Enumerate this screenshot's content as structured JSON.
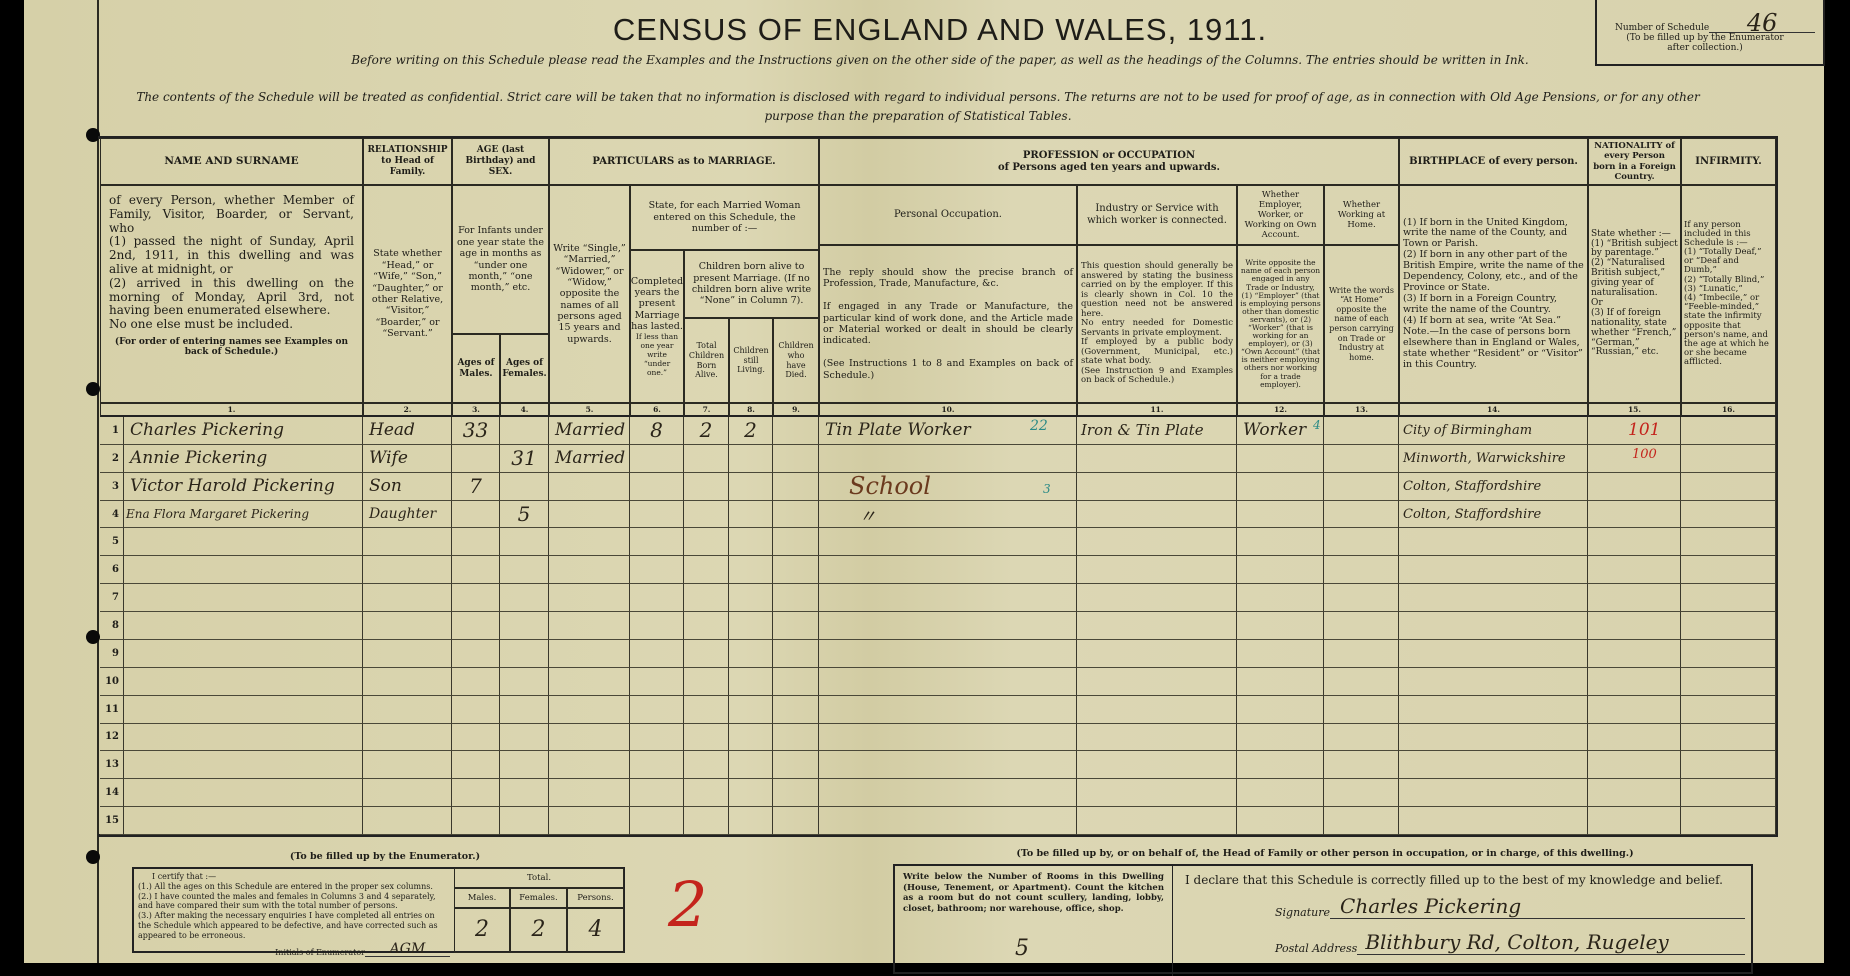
{
  "title": "CENSUS OF ENGLAND AND WALES, 1911.",
  "instruction_1": "Before writing on this Schedule please read the Examples and the Instructions given on the other side of the paper, as well as the headings of the Columns. The entries should be written in Ink.",
  "instruction_2": "The contents of the Schedule will be treated as confidential. Strict care will be taken that no information is disclosed with regard to individual persons. The returns are not to be used for proof of age, as in connection with Old Age Pensions, or for any other purpose than the preparation of Statistical Tables.",
  "schedule_box": {
    "label": "Number of Schedule",
    "value": "46",
    "note": "(To be filled up by the Enumerator after collection.)"
  },
  "headers": {
    "name": "NAME AND SURNAME",
    "name_desc": "of every Person, whether Member of Family, Visitor, Boarder, or Servant, who\n(1) passed the night of Sunday, April 2nd, 1911, in this dwelling and was alive at midnight, or\n(2) arrived in this dwelling on the morning of Monday, April 3rd, not having been enumerated elsewhere.\nNo one else must be included.",
    "name_note": "(For order of entering names see Examples on back of Schedule.)",
    "relationship": "RELATIONSHIP to Head of Family.",
    "relationship_desc": "State whether “Head,” or “Wife,” “Son,” “Daughter,” or other Relative, “Visitor,” “Boarder,” or “Servant.”",
    "age": "AGE (last Birthday) and SEX.",
    "age_desc": "For Infants under one year state the age in months as “under one month,” “one month,” etc.",
    "age_males": "Ages of Males.",
    "age_females": "Ages of Females.",
    "marriage": "PARTICULARS as to MARRIAGE.",
    "condition_desc": "Write “Single,” “Married,” “Widower,” or “Widow,” opposite the names of all persons aged 15 years and upwards.",
    "married_woman": "State, for each Married Woman entered on this Schedule, the number of :—",
    "years_married": "Completed years the present Marriage has lasted.",
    "years_married_note": "If less than one year write “under one.”",
    "children_born": "Children born alive to present Marriage. (If no children born alive write “None” in Column 7).",
    "total_born": "Total Children Born Alive.",
    "still_living": "Children still Living.",
    "died": "Children who have Died.",
    "profession": "PROFESSION or OCCUPATION",
    "profession_sub": "of Persons aged ten years and upwards.",
    "personal_occupation": "Personal Occupation.",
    "personal_occupation_desc": "The reply should show the precise branch of Profession, Trade, Manufacture, &c.\n\nIf engaged in any Trade or Manufacture, the particular kind of work done, and the Article made or Material worked or dealt in should be clearly indicated.\n\n(See Instructions 1 to 8 and Examples on back of Schedule.)",
    "industry": "Industry or Service with which worker is connected.",
    "industry_desc": "This question should generally be answered by stating the business carried on by the employer. If this is clearly shown in Col. 10 the question need not be answered here.\nNo entry needed for Domestic Servants in private employment.\nIf employed by a public body (Government, Municipal, etc.) state what body.\n(See Instruction 9 and Examples on back of Schedule.)",
    "employer": "Whether Employer, Worker, or Working on Own Account.",
    "employer_desc": "Write opposite the name of each person engaged in any Trade or Industry, (1) “Employer” (that is employing persons other than domestic servants), or (2) “Worker” (that is working for an employer), or (3) “Own Account” (that is neither employing others nor working for a trade employer).",
    "at_home": "Whether Working at Home.",
    "at_home_desc": "Write the words “At Home” opposite the name of each person carrying on Trade or Industry at home.",
    "birthplace": "BIRTHPLACE of every person.",
    "birthplace_desc": "(1) If born in the United Kingdom, write the name of the County, and Town or Parish.\n(2) If born in any other part of the British Empire, write the name of the Dependency, Colony, etc., and of the Province or State.\n(3) If born in a Foreign Country, write the name of the Country.\n(4) If born at sea, write “At Sea.”\nNote.—In the case of persons born elsewhere than in England or Wales, state whether “Resident” or “Visitor” in this Country.",
    "nationality": "NATIONALITY of every Person born in a Foreign Country.",
    "nationality_desc": "State whether :—\n(1) “British subject by parentage.”\n(2) “Naturalised British subject,” giving year of naturalisation.\nOr\n(3) If of foreign nationality, state whether “French,” “German,” “Russian,” etc.",
    "infirmity": "INFIRMITY.",
    "infirmity_desc": "If any person included in this Schedule is :—\n(1) “Totally Deaf,” or “Deaf and Dumb,”\n(2) “Totally Blind,”\n(3) “Lunatic,”\n(4) “Imbecile,” or “Feeble-minded,”\nstate the infirmity opposite that person's name, and the age at which he or she became afflicted.",
    "col_numbers": [
      "1.",
      "2.",
      "3.",
      "4.",
      "5.",
      "6.",
      "7.",
      "8.",
      "9.",
      "10.",
      "11.",
      "12.",
      "13.",
      "14.",
      "15.",
      "16."
    ]
  },
  "rows": [
    {
      "no": "1",
      "name": "Charles Pickering",
      "relationship": "Head",
      "age_male": "33",
      "age_female": "",
      "condition": "Married",
      "years_married": "8",
      "born_alive": "2",
      "living": "2",
      "died": "",
      "occupation": "Tin Plate Worker",
      "industry": "Iron & Tin Plate",
      "employment": "Worker",
      "at_home": "",
      "birthplace": "City of Birmingham",
      "nationality": "",
      "infirmity": ""
    },
    {
      "no": "2",
      "name": "Annie Pickering",
      "relationship": "Wife",
      "age_male": "",
      "age_female": "31",
      "condition": "Married",
      "years_married": "",
      "born_alive": "",
      "living": "",
      "died": "",
      "occupation": "",
      "industry": "",
      "employment": "",
      "at_home": "",
      "birthplace": "Minworth, Warwickshire",
      "nationality": "",
      "infirmity": ""
    },
    {
      "no": "3",
      "name": "Victor Harold Pickering",
      "relationship": "Son",
      "age_male": "7",
      "age_female": "",
      "condition": "",
      "years_married": "",
      "born_alive": "",
      "living": "",
      "died": "",
      "occupation": "School",
      "industry": "",
      "employment": "",
      "at_home": "",
      "birthplace": "Colton, Staffordshire",
      "nationality": "",
      "infirmity": ""
    },
    {
      "no": "4",
      "name": "Ena Flora Margaret Pickering",
      "relationship": "Daughter",
      "age_male": "",
      "age_female": "5",
      "condition": "",
      "years_married": "",
      "born_alive": "",
      "living": "",
      "died": "",
      "occupation": "〃",
      "industry": "",
      "employment": "",
      "at_home": "",
      "birthplace": "Colton, Staffordshire",
      "nationality": "",
      "infirmity": ""
    },
    {
      "no": "5"
    },
    {
      "no": "6"
    },
    {
      "no": "7"
    },
    {
      "no": "8"
    },
    {
      "no": "9"
    },
    {
      "no": "10"
    },
    {
      "no": "11"
    },
    {
      "no": "12"
    },
    {
      "no": "13"
    },
    {
      "no": "14"
    },
    {
      "no": "15"
    }
  ],
  "enumerator_marks": {
    "row1_occupation_code": "22",
    "row1_employment_code": "4",
    "row3_occupation_code": "3",
    "row1_nationality_code": "101",
    "row2_nationality_code": "100",
    "page_mark": "2"
  },
  "enumerator_section": {
    "heading": "(To be filled up by the Enumerator.)",
    "certify": "I certify that :—",
    "items": [
      "(1.) All the ages on this Schedule are entered in the proper sex columns.",
      "(2.) I have counted the males and females in Columns 3 and 4 separately, and have compared their sum with the total number of persons.",
      "(3.) After making the necessary enquiries I have completed all entries on the Schedule which appeared to be defective, and have corrected such as appeared to be erroneous."
    ],
    "initials_label": "Initials of Enumerator",
    "initials": "AGM",
    "total_label": "Total.",
    "males_label": "Males.",
    "females_label": "Females.",
    "persons_label": "Persons.",
    "males": "2",
    "females": "2",
    "persons": "4"
  },
  "head_section": {
    "heading": "(To be filled up by, or on behalf of, the Head of Family or other person in occupation, or in charge, of this dwelling.)",
    "rooms_instruction": "Write below the Number of Rooms in this Dwelling (House, Tenement, or Apartment). Count the kitchen as a room but do not count scullery, landing, lobby, closet, bathroom; nor warehouse, office, shop.",
    "rooms": "5",
    "declaration": "I declare that this Schedule is correctly filled up to the best of my knowledge and belief.",
    "signature_label": "Signature",
    "signature": "Charles Pickering",
    "address_label": "Postal Address",
    "address": "Blithbury Rd, Colton, Rugeley"
  },
  "colors": {
    "paper": "#d8d2ad",
    "ink": "#2a2419",
    "red_ink": "#c4241c",
    "teal_ink": "#2a8a86",
    "school_ink": "#6b3a1e"
  }
}
